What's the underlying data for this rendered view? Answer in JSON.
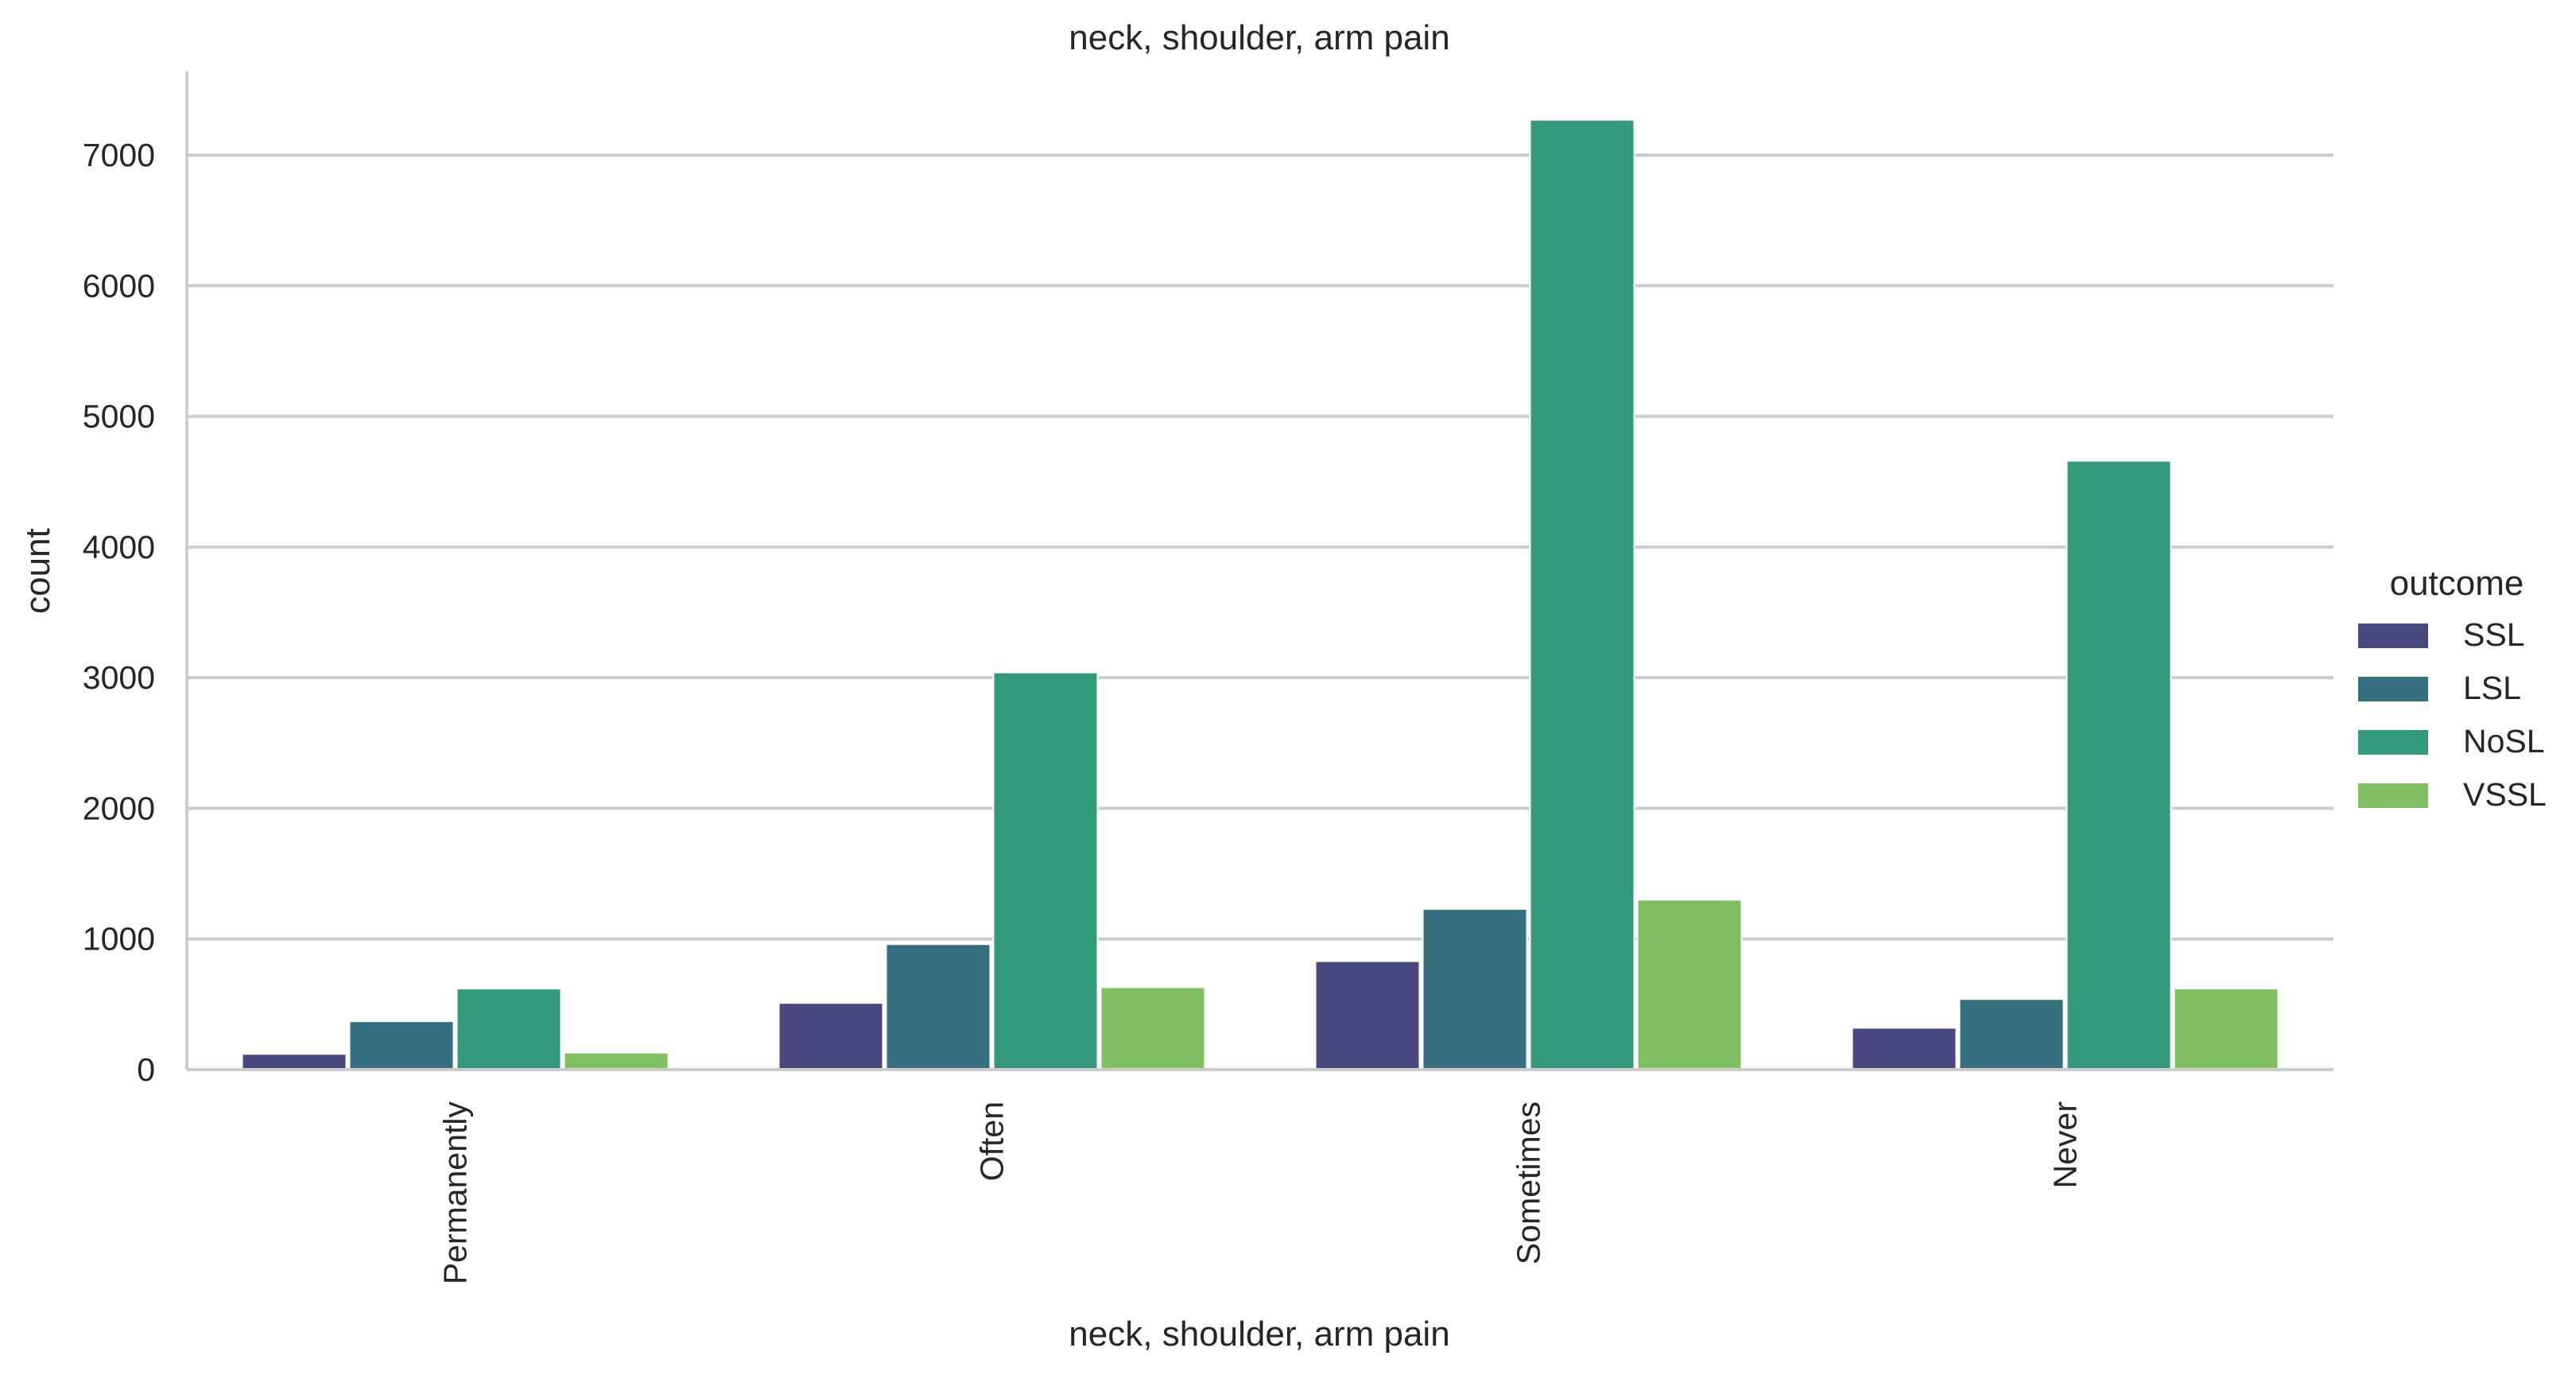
{
  "chart_data": {
    "type": "bar",
    "title": "neck, shoulder, arm pain",
    "xlabel": "neck, shoulder, arm pain",
    "ylabel": "count",
    "categories": [
      "Permanently",
      "Often",
      "Sometimes",
      "Never"
    ],
    "series": [
      {
        "name": "SSL",
        "color": "#48487e",
        "values": [
          120,
          510,
          830,
          320
        ]
      },
      {
        "name": "LSL",
        "color": "#366f80",
        "values": [
          370,
          960,
          1230,
          540
        ]
      },
      {
        "name": "NoSL",
        "color": "#35997b",
        "values": [
          620,
          3040,
          7270,
          4660
        ]
      },
      {
        "name": "VSSL",
        "color": "#81c062",
        "values": [
          130,
          630,
          1300,
          620
        ]
      }
    ],
    "ylim": [
      0,
      7650
    ],
    "yticks": [
      0,
      1000,
      2000,
      3000,
      4000,
      5000,
      6000,
      7000
    ],
    "grid": "horizontal",
    "legend": {
      "title": "outcome",
      "placement": "right"
    }
  }
}
